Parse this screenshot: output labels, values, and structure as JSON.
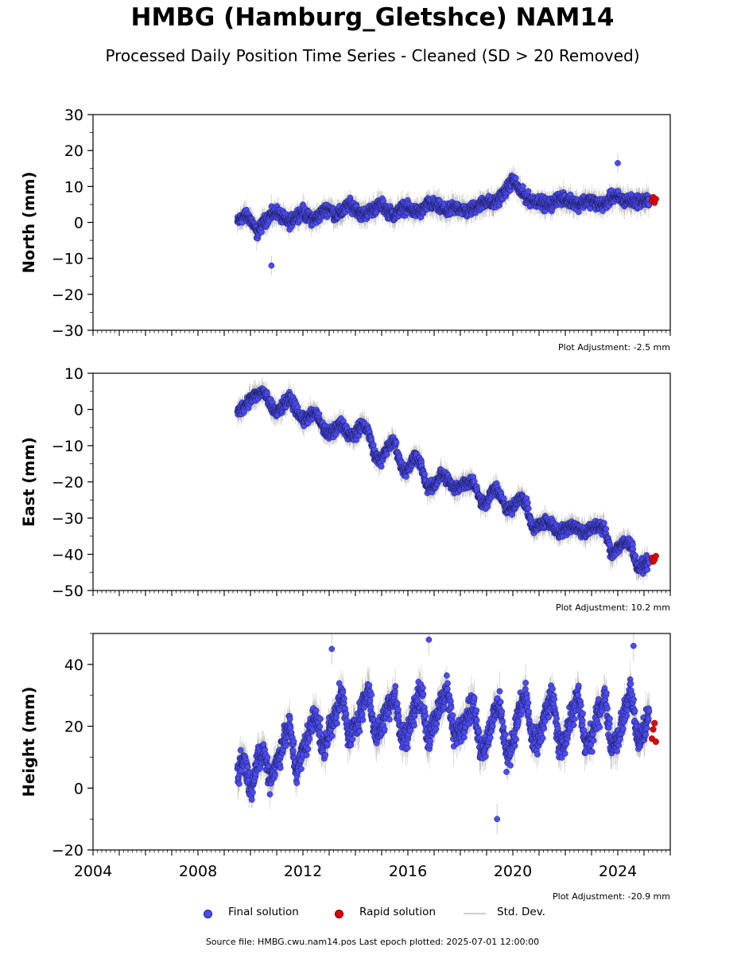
{
  "title": "HMBG (Hamburg_Gletshce) NAM14",
  "subtitle": "Processed Daily Position Time Series - Cleaned (SD > 20 Removed)",
  "legend": {
    "final_label": "Final solution",
    "rapid_label": "Rapid solution",
    "std_label": "Std. Dev."
  },
  "footer": "Source file: HMBG.cwu.nam14.pos  Last epoch plotted: 2025-07-01 12:00:00",
  "colors": {
    "final": "#4b4bf5",
    "rapid": "#e00000",
    "std": "#9a9a9a"
  },
  "chart_data": [
    {
      "type": "scatter",
      "ylabel": "North (mm)",
      "adjustment": "Plot Adjustment: -2.5 mm",
      "ylim": [
        -30,
        30
      ],
      "yticks": [
        30,
        20,
        10,
        0,
        -10,
        -20,
        -30
      ],
      "ytick_labels": [
        "30",
        "20",
        "10",
        "0",
        "−10",
        "−20",
        "−30"
      ],
      "xlim": [
        2004,
        2026
      ],
      "series": [
        {
          "name": "Final solution",
          "x": [
            2009.5,
            2009.75,
            2010.0,
            2010.25,
            2010.5,
            2010.75,
            2011.0,
            2011.25,
            2011.5,
            2011.75,
            2012.0,
            2012.25,
            2012.5,
            2012.75,
            2013.0,
            2013.25,
            2013.5,
            2013.75,
            2014.0,
            2014.25,
            2014.5,
            2014.75,
            2015.0,
            2015.25,
            2015.5,
            2015.75,
            2016.0,
            2016.25,
            2016.5,
            2016.75,
            2017.0,
            2017.25,
            2017.5,
            2017.75,
            2018.0,
            2018.25,
            2018.5,
            2018.75,
            2019.0,
            2019.25,
            2019.5,
            2019.75,
            2020.0,
            2020.25,
            2020.5,
            2020.75,
            2021.0,
            2021.25,
            2021.5,
            2021.75,
            2022.0,
            2022.25,
            2022.5,
            2022.75,
            2023.0,
            2023.25,
            2023.5,
            2023.75,
            2024.0,
            2024.25,
            2024.5,
            2024.75,
            2025.0,
            2025.2
          ],
          "y": [
            0,
            2,
            1,
            -3,
            0,
            2,
            3,
            1,
            0,
            2,
            3,
            1,
            1,
            3,
            4,
            2,
            3,
            5,
            4,
            2,
            3,
            4,
            5,
            3,
            2,
            4,
            4,
            3,
            3,
            5,
            5,
            4,
            3,
            4,
            4,
            3,
            4,
            5,
            6,
            5,
            7,
            9,
            12,
            9,
            7,
            6,
            6,
            5,
            5,
            7,
            6,
            6,
            5,
            6,
            6,
            5,
            5,
            7,
            7,
            6,
            6,
            6,
            6,
            6
          ]
        },
        {
          "name": "Rapid solution",
          "x": [
            2025.3,
            2025.35,
            2025.4,
            2025.45
          ],
          "y": [
            6,
            7,
            5.5,
            6.5
          ]
        }
      ],
      "outliers": [
        {
          "x": 2010.8,
          "y": -12
        },
        {
          "x": 2024.0,
          "y": 16.5
        }
      ]
    },
    {
      "type": "scatter",
      "ylabel": "East (mm)",
      "adjustment": "Plot Adjustment: 10.2 mm",
      "ylim": [
        -50,
        10
      ],
      "yticks": [
        10,
        0,
        -10,
        -20,
        -30,
        -40,
        -50
      ],
      "ytick_labels": [
        "10",
        "0",
        "−10",
        "−20",
        "−30",
        "−40",
        "−50"
      ],
      "xlim": [
        2004,
        2026
      ],
      "series": [
        {
          "name": "Final solution",
          "x": [
            2009.5,
            2009.75,
            2010.0,
            2010.25,
            2010.5,
            2010.75,
            2011.0,
            2011.25,
            2011.5,
            2011.75,
            2012.0,
            2012.25,
            2012.5,
            2012.75,
            2013.0,
            2013.25,
            2013.5,
            2013.75,
            2014.0,
            2014.25,
            2014.5,
            2014.75,
            2015.0,
            2015.25,
            2015.5,
            2015.75,
            2016.0,
            2016.25,
            2016.5,
            2016.75,
            2017.0,
            2017.25,
            2017.5,
            2017.75,
            2018.0,
            2018.25,
            2018.5,
            2018.75,
            2019.0,
            2019.25,
            2019.5,
            2019.75,
            2020.0,
            2020.25,
            2020.5,
            2020.75,
            2021.0,
            2021.25,
            2021.5,
            2021.75,
            2022.0,
            2022.25,
            2022.5,
            2022.75,
            2023.0,
            2023.25,
            2023.5,
            2023.75,
            2024.0,
            2024.25,
            2024.5,
            2024.75,
            2025.0,
            2025.2
          ],
          "y": [
            -1,
            1,
            3,
            4,
            5,
            1,
            -1,
            1,
            3,
            0,
            -3,
            -2,
            -1,
            -5,
            -7,
            -5,
            -4,
            -7,
            -7,
            -4,
            -6,
            -13,
            -14,
            -10,
            -9,
            -16,
            -17,
            -13,
            -15,
            -22,
            -21,
            -18,
            -19,
            -22,
            -21,
            -20,
            -20,
            -25,
            -26,
            -22,
            -23,
            -28,
            -27,
            -24,
            -26,
            -33,
            -32,
            -31,
            -32,
            -34,
            -33,
            -32,
            -33,
            -34,
            -33,
            -32,
            -33,
            -40,
            -38,
            -37,
            -37,
            -44,
            -43,
            -42
          ]
        },
        {
          "name": "Rapid solution",
          "x": [
            2025.3,
            2025.35,
            2025.4,
            2025.45
          ],
          "y": [
            -41,
            -42,
            -41.5,
            -40.5
          ]
        }
      ],
      "outliers": []
    },
    {
      "type": "scatter",
      "ylabel": "Height (mm)",
      "adjustment": "Plot Adjustment: -20.9 mm",
      "ylim": [
        -20,
        50
      ],
      "yticks": [
        40,
        20,
        0,
        -20
      ],
      "ytick_labels": [
        "40",
        "20",
        "0",
        "−20"
      ],
      "xlim": [
        2004,
        2026
      ],
      "xticks": [
        2004,
        2008,
        2012,
        2016,
        2020,
        2024
      ],
      "xtick_labels": [
        "2004",
        "2008",
        "2012",
        "2016",
        "2020",
        "2024"
      ],
      "series": [
        {
          "name": "Final solution",
          "x": [
            2009.5,
            2009.75,
            2010.0,
            2010.25,
            2010.5,
            2010.75,
            2011.0,
            2011.25,
            2011.5,
            2011.75,
            2012.0,
            2012.25,
            2012.5,
            2012.75,
            2013.0,
            2013.25,
            2013.5,
            2013.75,
            2014.0,
            2014.25,
            2014.5,
            2014.75,
            2015.0,
            2015.25,
            2015.5,
            2015.75,
            2016.0,
            2016.25,
            2016.5,
            2016.75,
            2017.0,
            2017.25,
            2017.5,
            2017.75,
            2018.0,
            2018.25,
            2018.5,
            2018.75,
            2019.0,
            2019.25,
            2019.5,
            2019.75,
            2020.0,
            2020.25,
            2020.5,
            2020.75,
            2021.0,
            2021.25,
            2021.5,
            2021.75,
            2022.0,
            2022.25,
            2022.5,
            2022.75,
            2023.0,
            2023.25,
            2023.5,
            2023.75,
            2024.0,
            2024.25,
            2024.5,
            2024.75,
            2025.0,
            2025.2
          ],
          "y": [
            5,
            10,
            0,
            8,
            12,
            3,
            8,
            15,
            20,
            5,
            12,
            18,
            25,
            12,
            18,
            25,
            30,
            16,
            20,
            26,
            32,
            17,
            20,
            27,
            30,
            16,
            18,
            25,
            32,
            16,
            20,
            28,
            32,
            17,
            19,
            24,
            27,
            13,
            15,
            23,
            28,
            10,
            15,
            25,
            30,
            14,
            16,
            24,
            30,
            14,
            16,
            24,
            30,
            14,
            16,
            24,
            30,
            14,
            16,
            24,
            32,
            15,
            18,
            24
          ]
        },
        {
          "name": "Rapid solution",
          "x": [
            2025.3,
            2025.35,
            2025.4,
            2025.45
          ],
          "y": [
            16,
            19,
            21,
            15
          ]
        }
      ],
      "outliers": [
        {
          "x": 2013.1,
          "y": 45
        },
        {
          "x": 2016.8,
          "y": 48
        },
        {
          "x": 2019.4,
          "y": -10
        },
        {
          "x": 2024.6,
          "y": 46
        }
      ]
    }
  ]
}
